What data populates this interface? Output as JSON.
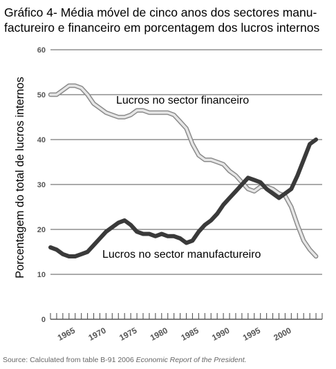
{
  "title_line1": "Gráfico 4- Média móvel de cinco anos dos sectores manu-",
  "title_line2": "factureiro e financeiro em porcentagem dos lucros internos",
  "source_text": "Source: Calculated from table B-91 2006",
  "source_italic": "Economic Report of the President.",
  "chart_data": {
    "type": "line",
    "ylabel": "Porcentagem do total de lucros internos",
    "xlabel": "",
    "ylim": [
      0,
      60
    ],
    "xlim": [
      1962,
      2006
    ],
    "y_ticks": [
      "0",
      "10",
      "20",
      "30",
      "40",
      "50",
      "60"
    ],
    "x_ticks": [
      "1965",
      "1970",
      "1975",
      "1980",
      "1985",
      "1990",
      "1995",
      "2000"
    ],
    "grid": true,
    "series": [
      {
        "name": "Lucros no sector financeiro",
        "color": "#c8c8c8",
        "x": [
          1962,
          1963,
          1964,
          1965,
          1966,
          1967,
          1968,
          1969,
          1970,
          1971,
          1972,
          1973,
          1974,
          1975,
          1976,
          1977,
          1978,
          1979,
          1980,
          1981,
          1982,
          1983,
          1984,
          1985,
          1986,
          1987,
          1988,
          1989,
          1990,
          1991,
          1992,
          1993,
          1994,
          1995,
          1996,
          1997,
          1998,
          1999,
          2000,
          2001,
          2002,
          2003,
          2004,
          2005
        ],
        "values": [
          50,
          50,
          51,
          52,
          52,
          51.5,
          50,
          48,
          47,
          46,
          45.5,
          45,
          45,
          45.5,
          46.5,
          46.5,
          46,
          46,
          46,
          46,
          45.5,
          44,
          42.5,
          39,
          36.5,
          35.5,
          35.5,
          35,
          34.5,
          33,
          32,
          30.5,
          29,
          28.5,
          29.5,
          29.5,
          29,
          28,
          27.5,
          25,
          21,
          17.5,
          15.5,
          14
        ]
      },
      {
        "name": "Lucros no sector manufactureiro",
        "color": "#3a3a3a",
        "x": [
          1962,
          1963,
          1964,
          1965,
          1966,
          1967,
          1968,
          1969,
          1970,
          1971,
          1972,
          1973,
          1974,
          1975,
          1976,
          1977,
          1978,
          1979,
          1980,
          1981,
          1982,
          1983,
          1984,
          1985,
          1986,
          1987,
          1988,
          1989,
          1990,
          1991,
          1992,
          1993,
          1994,
          1995,
          1996,
          1997,
          1998,
          1999,
          2000,
          2001,
          2002,
          2003,
          2004,
          2005
        ],
        "values": [
          16,
          15.5,
          14.5,
          14,
          14,
          14.5,
          15,
          16.5,
          18,
          19.5,
          20.5,
          21.5,
          22,
          21,
          19.5,
          19,
          19,
          18.5,
          19,
          18.5,
          18.5,
          18,
          17,
          17.5,
          19.5,
          21,
          22,
          23.5,
          25.5,
          27,
          28.5,
          30,
          31.5,
          31,
          30.5,
          29,
          28,
          27,
          28,
          29,
          32,
          35.5,
          39,
          40
        ]
      }
    ],
    "annotations": [
      {
        "text": "Lucros no sector financeiro",
        "series": 0
      },
      {
        "text": "Lucros no sector manufactureiro",
        "series": 1
      }
    ]
  }
}
